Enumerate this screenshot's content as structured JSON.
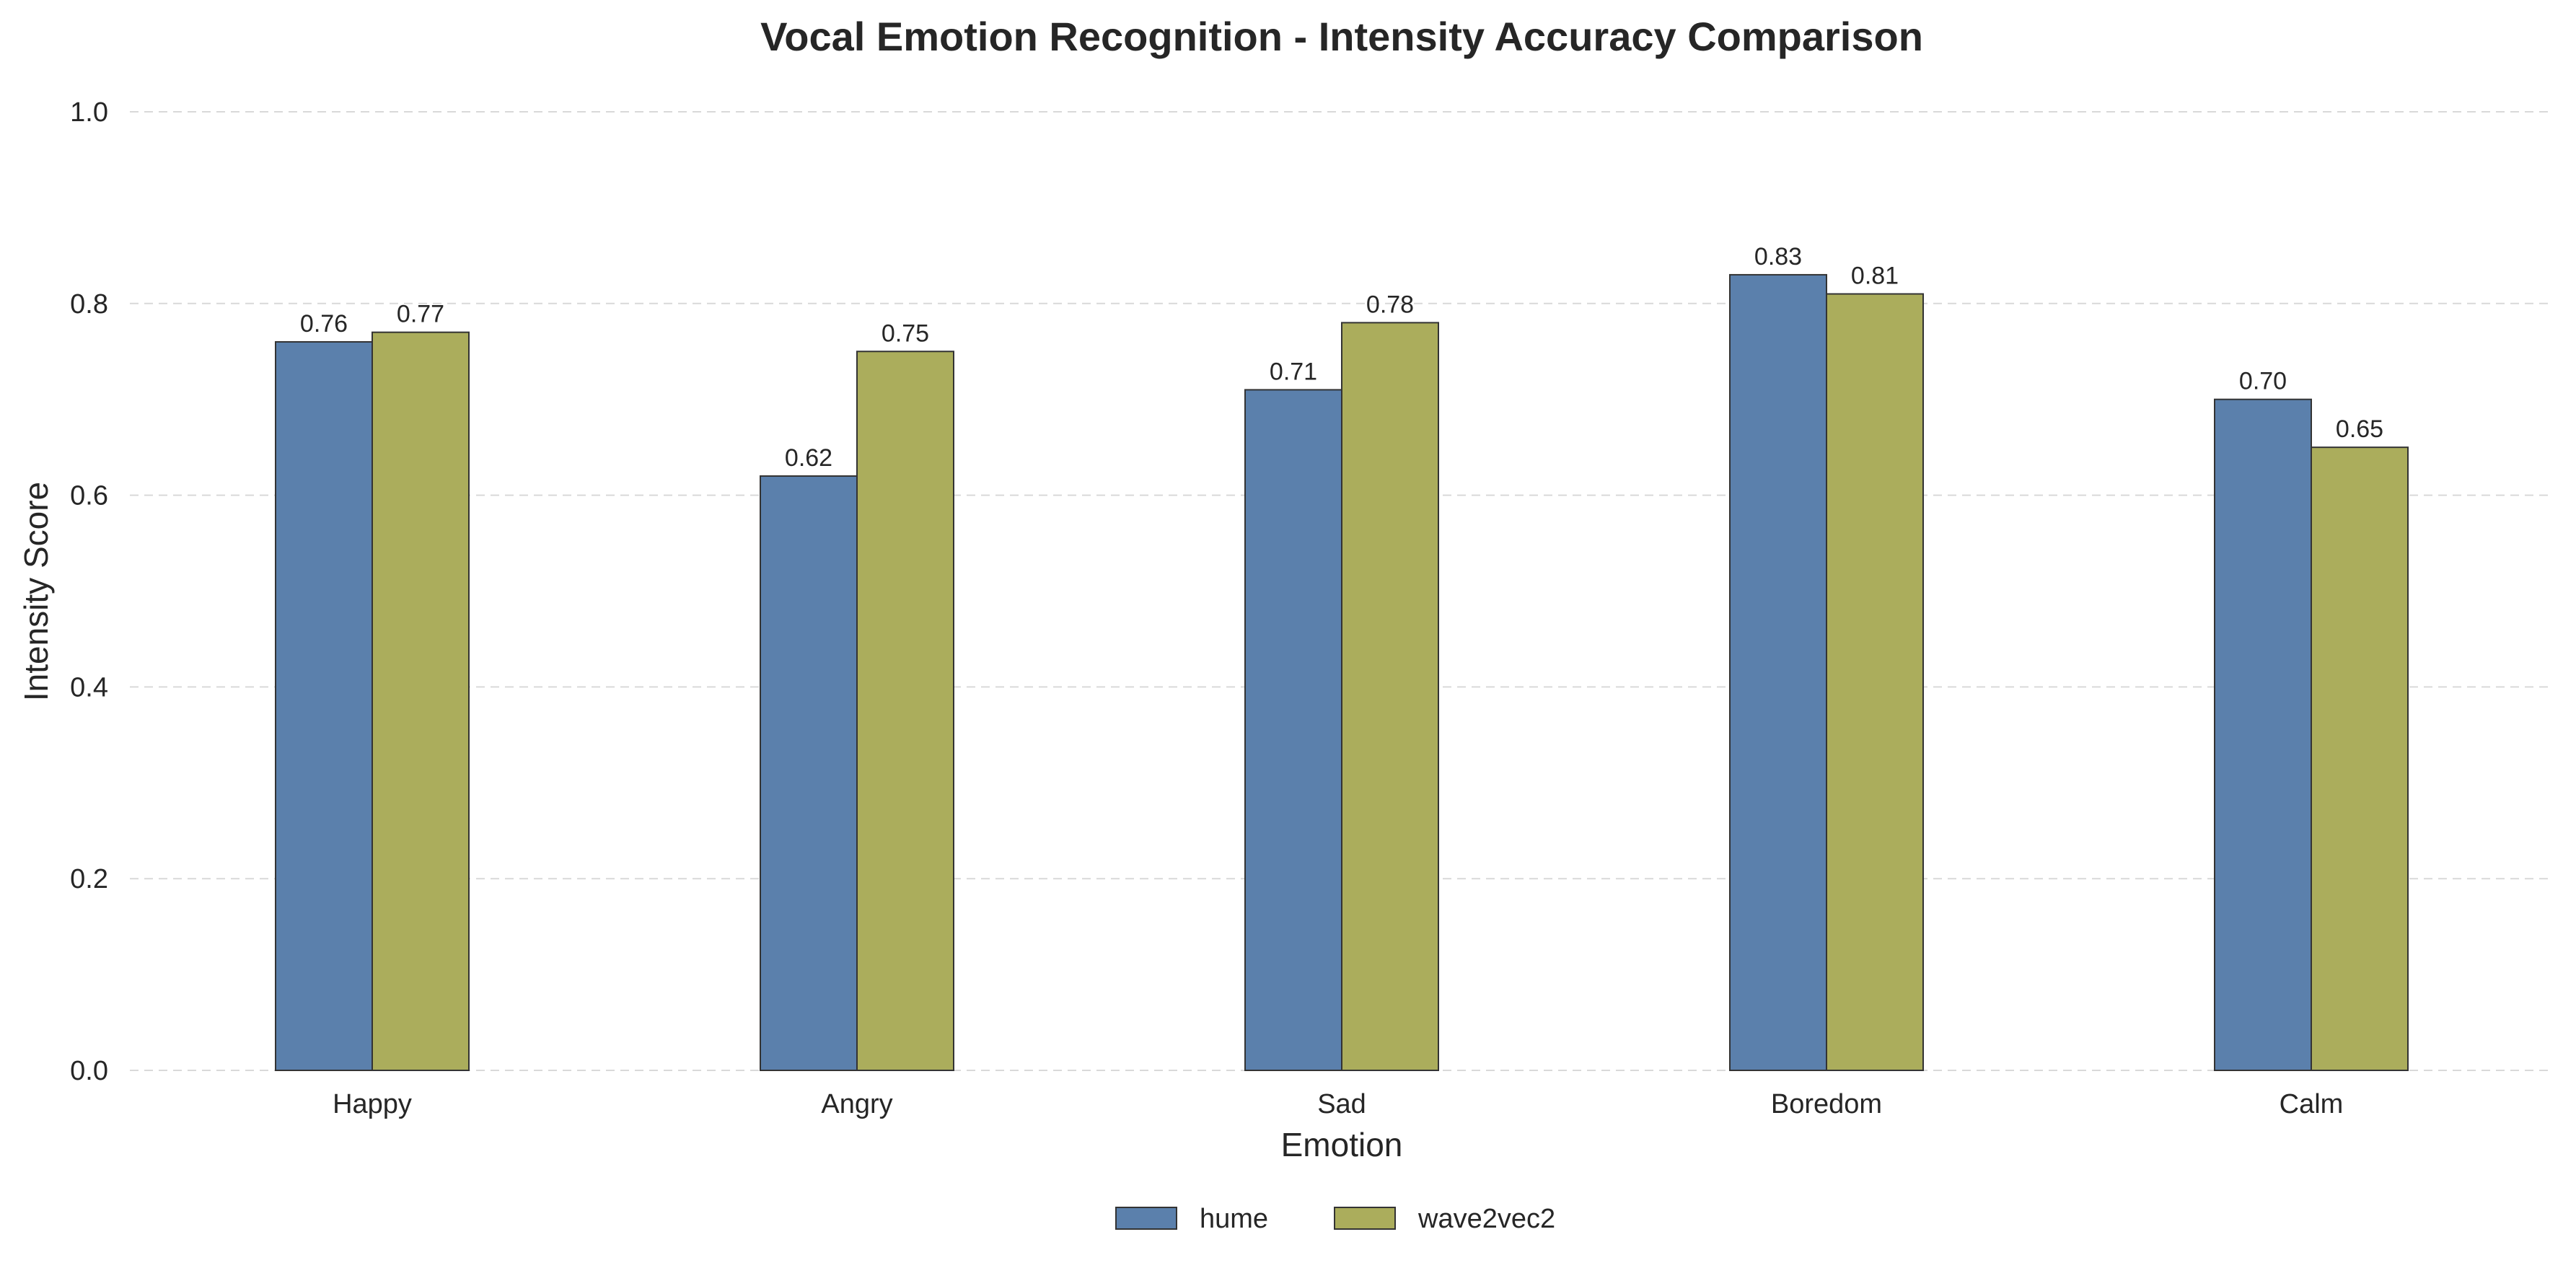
{
  "chart_data": {
    "type": "bar",
    "title": "Vocal Emotion Recognition - Intensity Accuracy Comparison",
    "xlabel": "Emotion",
    "ylabel": "Intensity Score",
    "categories": [
      "Happy",
      "Angry",
      "Sad",
      "Boredom",
      "Calm"
    ],
    "series": [
      {
        "name": "hume",
        "values": [
          0.76,
          0.62,
          0.71,
          0.83,
          0.7
        ],
        "labels": [
          "0.76",
          "0.62",
          "0.71",
          "0.83",
          "0.70"
        ],
        "color": "#5b80ac"
      },
      {
        "name": "wave2vec2",
        "values": [
          0.77,
          0.75,
          0.78,
          0.81,
          0.65
        ],
        "labels": [
          "0.77",
          "0.75",
          "0.78",
          "0.81",
          "0.65"
        ],
        "color": "#abad5c"
      }
    ],
    "ylim": [
      0,
      1.0
    ],
    "yticks": [
      0.0,
      0.2,
      0.4,
      0.6,
      0.8,
      1.0
    ],
    "ytick_labels": [
      "0.0",
      "0.2",
      "0.4",
      "0.6",
      "0.8",
      "1.0"
    ],
    "grid": true,
    "legend_position": "bottom-center"
  }
}
